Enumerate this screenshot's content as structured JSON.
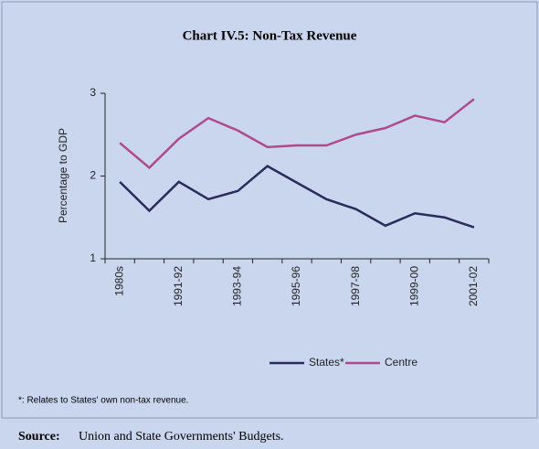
{
  "chart_data": {
    "type": "line",
    "title": "Chart IV.5: Non-Tax Revenue",
    "y_label": "Percentage to GDP",
    "categories": [
      "1980s",
      null,
      "1991-92",
      null,
      "1993-94",
      null,
      "1995-96",
      null,
      "1997-98",
      null,
      "1999-00",
      null,
      "2001-02"
    ],
    "series": [
      {
        "name": "States*",
        "color": "#2b2a5c",
        "values": [
          1.93,
          1.58,
          1.93,
          1.72,
          1.82,
          2.12,
          1.92,
          1.72,
          1.6,
          1.4,
          1.55,
          1.5,
          1.38
        ]
      },
      {
        "name": "Centre",
        "color": "#b04a8f",
        "values": [
          2.4,
          2.1,
          2.45,
          2.7,
          2.55,
          2.35,
          2.37,
          2.37,
          2.5,
          2.58,
          2.73,
          2.65,
          2.93
        ]
      }
    ],
    "ylim": [
      1,
      3
    ],
    "yticks": [
      1,
      2,
      3
    ],
    "footnote": "*: Relates to States' own non-tax revenue.",
    "source_label": "Source:",
    "source": "Union and State Governments' Budgets."
  }
}
